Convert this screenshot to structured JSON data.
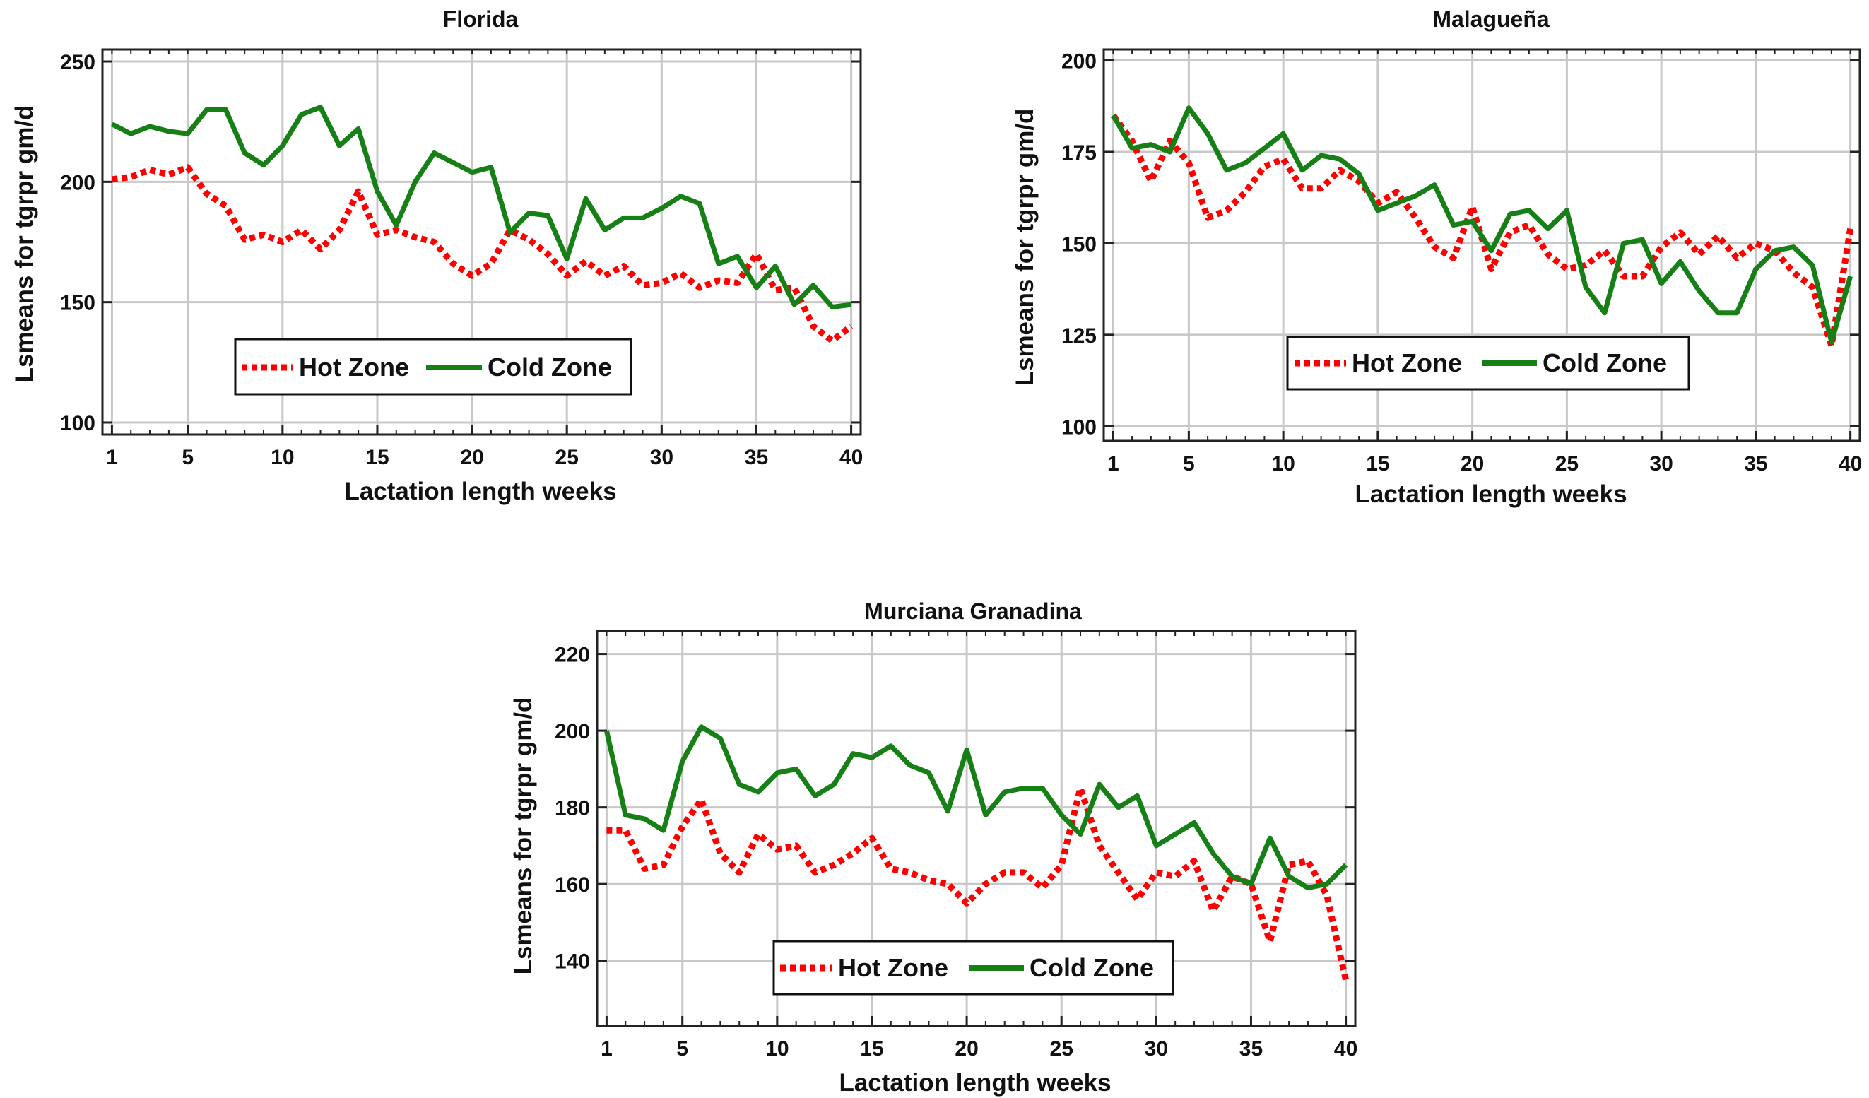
{
  "chart_data": [
    {
      "type": "line",
      "title": "Florida",
      "xlabel": "Lactation length weeks",
      "ylabel": "Lsmeans for tgrpr gm/d",
      "xlim": [
        0.5,
        40.5
      ],
      "ylim": [
        95,
        255
      ],
      "xticks": [
        1,
        5,
        10,
        15,
        20,
        25,
        30,
        35,
        40
      ],
      "yticks": [
        100,
        150,
        200,
        250
      ],
      "grid": true,
      "legend_position": "bottom-center",
      "x": [
        1,
        2,
        3,
        4,
        5,
        6,
        7,
        8,
        9,
        10,
        11,
        12,
        13,
        14,
        15,
        16,
        17,
        18,
        19,
        20,
        21,
        22,
        23,
        24,
        25,
        26,
        27,
        28,
        29,
        30,
        31,
        32,
        33,
        34,
        35,
        36,
        37,
        38,
        39,
        40
      ],
      "series": [
        {
          "name": "Hot Zone",
          "color": "#ff0000",
          "style": "dotted",
          "values": [
            201,
            202,
            205,
            203,
            206,
            195,
            190,
            176,
            178,
            175,
            180,
            172,
            180,
            196,
            178,
            180,
            177,
            175,
            166,
            161,
            166,
            180,
            176,
            170,
            161,
            167,
            161,
            165,
            157,
            158,
            162,
            156,
            159,
            158,
            170,
            155,
            156,
            140,
            134,
            140
          ]
        },
        {
          "name": "Cold Zone",
          "color": "#168016",
          "style": "solid",
          "values": [
            224,
            220,
            223,
            221,
            220,
            230,
            230,
            212,
            207,
            215,
            228,
            231,
            215,
            222,
            196,
            182,
            200,
            212,
            208,
            204,
            206,
            179,
            187,
            186,
            168,
            193,
            180,
            185,
            185,
            189,
            194,
            191,
            166,
            169,
            156,
            165,
            149,
            157,
            148,
            149
          ]
        }
      ]
    },
    {
      "type": "line",
      "title": "Malagueña",
      "xlabel": "Lactation length weeks",
      "ylabel": "Lsmeans for tgrpr gm/d",
      "xlim": [
        0.5,
        40.5
      ],
      "ylim": [
        96,
        203
      ],
      "xticks": [
        1,
        5,
        10,
        15,
        20,
        25,
        30,
        35,
        40
      ],
      "yticks": [
        100,
        125,
        150,
        175,
        200
      ],
      "grid": true,
      "legend_position": "bottom-center",
      "x": [
        1,
        2,
        3,
        4,
        5,
        6,
        7,
        8,
        9,
        10,
        11,
        12,
        13,
        14,
        15,
        16,
        17,
        18,
        19,
        20,
        21,
        22,
        23,
        24,
        25,
        26,
        27,
        28,
        29,
        30,
        31,
        32,
        33,
        34,
        35,
        36,
        37,
        38,
        39,
        40
      ],
      "series": [
        {
          "name": "Hot Zone",
          "color": "#ff0000",
          "style": "dotted",
          "values": [
            185,
            178,
            167,
            178,
            172,
            157,
            159,
            164,
            171,
            173,
            165,
            165,
            170,
            167,
            161,
            164,
            157,
            149,
            146,
            160,
            143,
            153,
            155,
            147,
            143,
            144,
            148,
            141,
            141,
            149,
            153,
            147,
            152,
            146,
            150,
            148,
            142,
            138,
            122,
            154
          ]
        },
        {
          "name": "Cold Zone",
          "color": "#168016",
          "style": "solid",
          "values": [
            185,
            176,
            177,
            175,
            187,
            180,
            170,
            172,
            176,
            180,
            170,
            174,
            173,
            169,
            159,
            161,
            163,
            166,
            155,
            156,
            148,
            158,
            159,
            154,
            159,
            138,
            131,
            150,
            151,
            139,
            145,
            137,
            131,
            131,
            143,
            148,
            149,
            144,
            123,
            141
          ]
        }
      ]
    },
    {
      "type": "line",
      "title": "Murciana Granadina",
      "xlabel": "Lactation length weeks",
      "ylabel": "Lsmeans for tgrpr gm/d",
      "xlim": [
        0.5,
        40.5
      ],
      "ylim": [
        123,
        226
      ],
      "xticks": [
        1,
        5,
        10,
        15,
        20,
        25,
        30,
        35,
        40
      ],
      "yticks": [
        140,
        160,
        180,
        200,
        220
      ],
      "grid": true,
      "legend_position": "bottom-center",
      "x": [
        1,
        2,
        3,
        4,
        5,
        6,
        7,
        8,
        9,
        10,
        11,
        12,
        13,
        14,
        15,
        16,
        17,
        18,
        19,
        20,
        21,
        22,
        23,
        24,
        25,
        26,
        27,
        28,
        29,
        30,
        31,
        32,
        33,
        34,
        35,
        36,
        37,
        38,
        39,
        40
      ],
      "series": [
        {
          "name": "Hot Zone",
          "color": "#ff0000",
          "style": "dotted",
          "values": [
            174,
            174,
            164,
            165,
            175,
            182,
            168,
            163,
            173,
            169,
            170,
            163,
            165,
            168,
            172,
            164,
            163,
            161,
            160,
            155,
            160,
            163,
            163,
            159,
            165,
            185,
            170,
            163,
            156,
            163,
            162,
            166,
            153,
            162,
            160,
            145,
            165,
            166,
            157,
            135
          ]
        },
        {
          "name": "Cold Zone",
          "color": "#168016",
          "style": "solid",
          "values": [
            200,
            178,
            177,
            174,
            192,
            201,
            198,
            186,
            184,
            189,
            190,
            183,
            186,
            194,
            193,
            196,
            191,
            189,
            179,
            195,
            178,
            184,
            185,
            185,
            178,
            173,
            186,
            180,
            183,
            170,
            173,
            176,
            168,
            162,
            160,
            172,
            162,
            159,
            160,
            165
          ]
        }
      ]
    }
  ]
}
